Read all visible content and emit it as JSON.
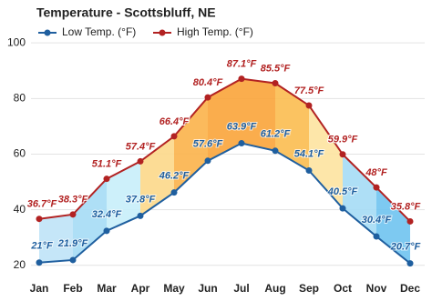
{
  "chart_data": {
    "type": "line",
    "title": "Temperature - Scottsbluff, NE",
    "categories": [
      "Jan",
      "Feb",
      "Mar",
      "Apr",
      "May",
      "Jun",
      "Jul",
      "Aug",
      "Sep",
      "Oct",
      "Nov",
      "Dec"
    ],
    "series": [
      {
        "name": "Low Temp. (°F)",
        "color": "#1f5f9f",
        "values": [
          21,
          21.9,
          32.4,
          37.8,
          46.2,
          57.6,
          63.9,
          61.2,
          54.1,
          40.5,
          30.4,
          20.7
        ],
        "value_labels": [
          "21°F",
          "21.9°F",
          "32.4°F",
          "37.8°F",
          "46.2°F",
          "57.6°F",
          "63.9°F",
          "61.2°F",
          "54.1°F",
          "40.5°F",
          "30.4°F",
          "20.7°F"
        ]
      },
      {
        "name": "High Temp. (°F)",
        "color": "#b22222",
        "values": [
          36.7,
          38.3,
          51.1,
          57.4,
          66.4,
          80.4,
          87.1,
          85.5,
          77.5,
          59.9,
          48,
          35.8
        ],
        "value_labels": [
          "36.7°F",
          "38.3°F",
          "51.1°F",
          "57.4°F",
          "66.4°F",
          "80.4°F",
          "87.1°F",
          "85.5°F",
          "77.5°F",
          "59.9°F",
          "48°F",
          "35.8°F"
        ]
      }
    ],
    "band_colors": [
      "#bfe3f7",
      "#a5dcf5",
      "#c8eefa",
      "#fcd88a",
      "#fbb24a",
      "#f9a43a",
      "#f9a43a",
      "#fbbd50",
      "#fde3a0",
      "#a5dcf5",
      "#6fc3f0"
    ],
    "ylim": [
      16,
      103
    ],
    "yticks": [
      20,
      40,
      60,
      80,
      100
    ],
    "grid": true
  }
}
